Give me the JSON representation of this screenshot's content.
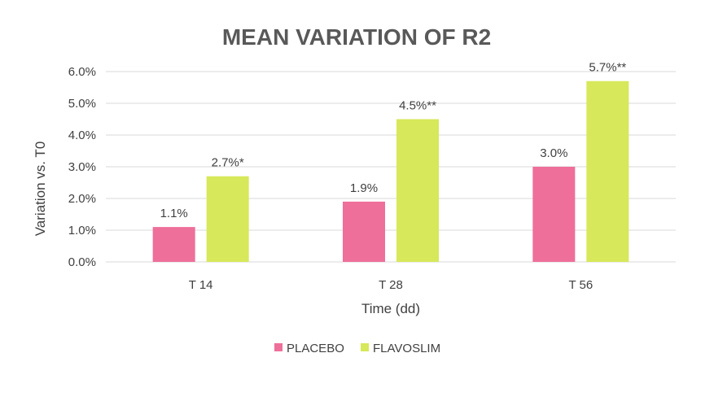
{
  "chart_data": {
    "type": "bar",
    "title": "MEAN VARIATION OF R2",
    "xlabel": "Time (dd)",
    "ylabel": "Variation vs. T0",
    "categories": [
      "T 14",
      "T 28",
      "T 56"
    ],
    "ylim": [
      0,
      6
    ],
    "yticks": [
      0,
      1,
      2,
      3,
      4,
      5,
      6
    ],
    "ytick_labels": [
      "0.0%",
      "1.0%",
      "2.0%",
      "3.0%",
      "4.0%",
      "5.0%",
      "6.0%"
    ],
    "grid": true,
    "legend_position": "bottom",
    "series": [
      {
        "name": "PLACEBO",
        "color": "#ee6f9a",
        "values": [
          1.1,
          1.9,
          3.0
        ],
        "labels": [
          "1.1%",
          "1.9%",
          "3.0%"
        ]
      },
      {
        "name": "FLAVOSLIM",
        "color": "#d7e85a",
        "values": [
          2.7,
          4.5,
          5.7
        ],
        "labels": [
          "2.7%*",
          "4.5%**",
          "5.7%**"
        ]
      }
    ]
  }
}
